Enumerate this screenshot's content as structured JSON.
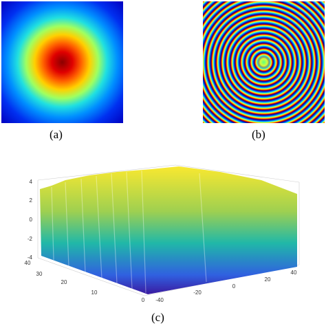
{
  "panels": [
    {
      "caption": "(a)"
    },
    {
      "caption": "(b)"
    },
    {
      "caption": "(c)",
      "zticks": [
        4,
        2,
        0,
        -2,
        -4
      ],
      "yticks": [
        40,
        30,
        20,
        10,
        0
      ],
      "xticks": [
        -40,
        -20,
        0,
        20,
        40
      ]
    }
  ]
}
